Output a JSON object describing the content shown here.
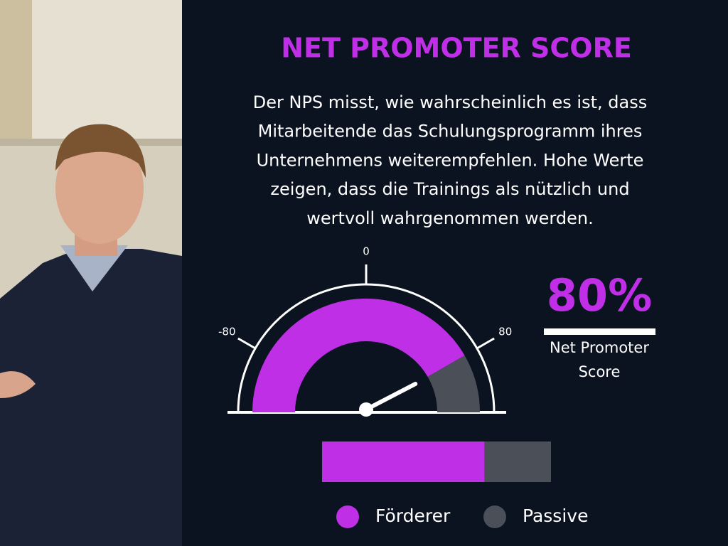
{
  "header": {
    "title": "NET PROMOTER SCORE"
  },
  "description": [
    "Der NPS misst, wie wahrscheinlich es ist, dass",
    "Mitarbeitende das Schulungsprogramm ihres",
    "Unternehmens weiterempfehlen. Hohe Werte",
    "zeigen, dass die Trainings als nützlich und",
    "wertvoll wahrgenommen werden."
  ],
  "gauge": {
    "lim": [
      -120,
      120
    ],
    "ticks": [
      -80,
      0,
      80
    ],
    "value": 80,
    "fill_color": "#bf2fe6",
    "rest_color": "#4b4f58"
  },
  "score": {
    "label": "80%",
    "caption": [
      "Net Promoter",
      "Score"
    ]
  },
  "bar": {
    "xlim": [
      0,
      100
    ],
    "series": [
      {
        "name": "Förderer",
        "color": "#bf2fe6",
        "value": 71
      },
      {
        "name": "Passive",
        "color": "#4b4f58",
        "value": 29
      }
    ]
  }
}
